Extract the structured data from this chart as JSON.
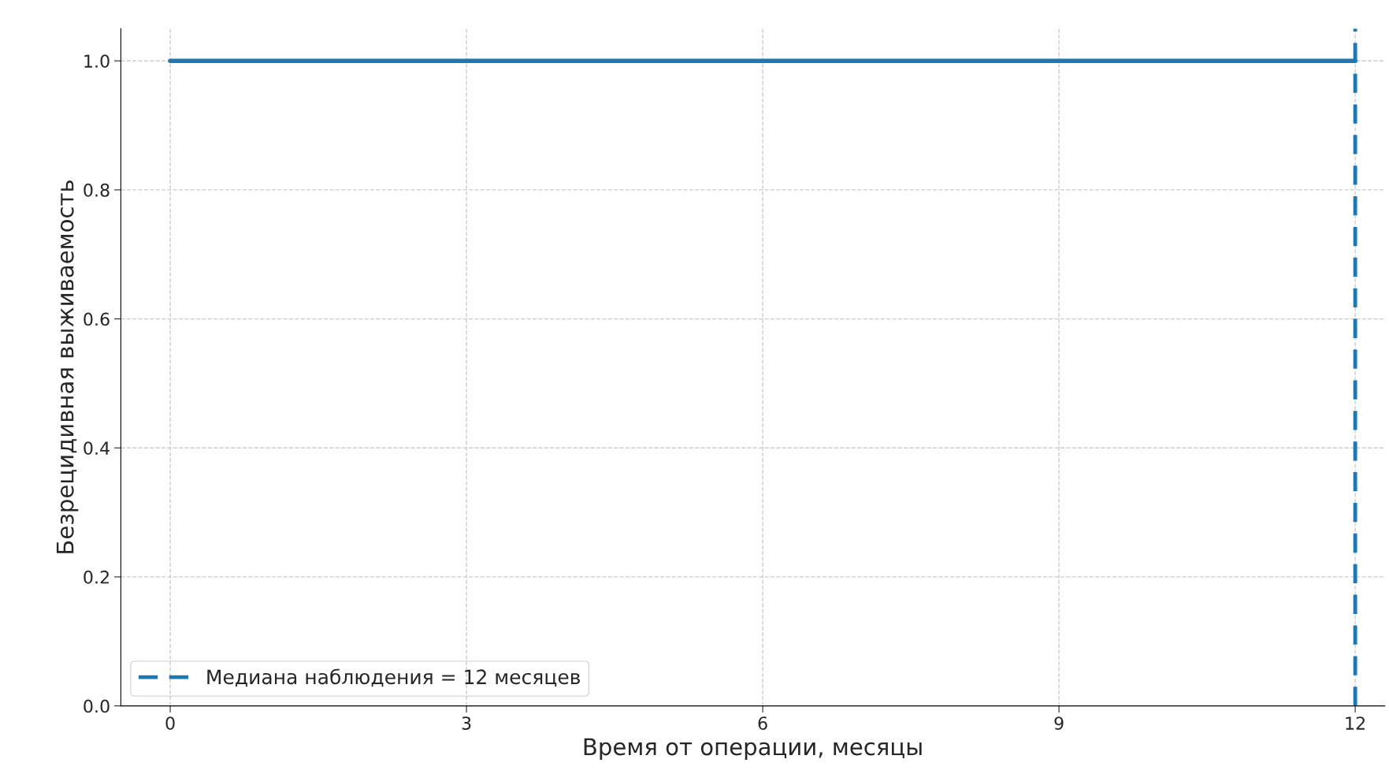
{
  "chart_data": {
    "type": "step",
    "xlabel": "Время от операции, месяцы",
    "ylabel": "Безрецидивная выживаемость",
    "x": [
      0,
      12
    ],
    "series": [
      {
        "color": "#1f77b4",
        "values": [
          1.0,
          1.0
        ]
      },
      {
        "type": "line",
        "name": "Медиана наблюдения = 12 месяцев",
        "color": "#1f77b4",
        "line_style": "dashed",
        "x": [
          12,
          12
        ],
        "values": [
          0,
          1.05
        ]
      }
    ],
    "xlim": [
      -0.5,
      12.3
    ],
    "xticks": [
      0,
      3,
      6,
      9,
      12
    ],
    "ylim": [
      0,
      1.05
    ],
    "yticks": [
      {
        "value": 0,
        "label": "0.0"
      },
      {
        "value": 0.2,
        "label": "0.2"
      },
      {
        "value": 0.4,
        "label": "0.4"
      },
      {
        "value": 0.6,
        "label": "0.6"
      },
      {
        "value": 0.8,
        "label": "0.8"
      },
      {
        "value": 1.0,
        "label": "1.0"
      }
    ],
    "grid": true,
    "legend": "bottom left"
  }
}
